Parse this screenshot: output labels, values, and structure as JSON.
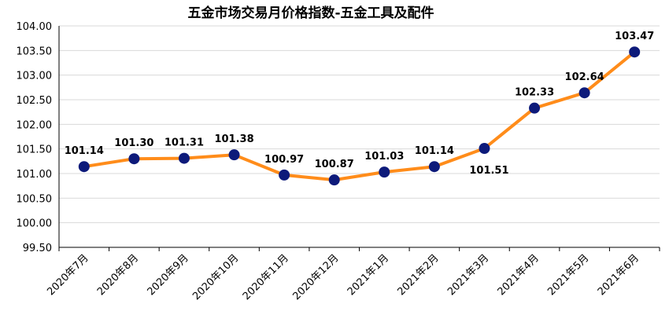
{
  "chart_data": {
    "type": "line",
    "title": "五金市场交易月价格指数-五金工具及配件",
    "xlabel": "",
    "ylabel": "",
    "categories": [
      "2020年7月",
      "2020年8月",
      "2020年9月",
      "2020年10月",
      "2020年11月",
      "2020年12月",
      "2021年1月",
      "2021年2月",
      "2021年3月",
      "2021年4月",
      "2021年5月",
      "2021年6月"
    ],
    "series": [
      {
        "values": [
          101.14,
          101.3,
          101.31,
          101.38,
          100.97,
          100.87,
          101.03,
          101.14,
          101.51,
          102.33,
          102.64,
          103.47
        ]
      }
    ],
    "data_labels": [
      "101.14",
      "101.30",
      "101.31",
      "101.38",
      "100.97",
      "100.87",
      "101.03",
      "101.14",
      "101.51",
      "102.33",
      "102.64",
      "103.47"
    ],
    "ylim": [
      99.5,
      104.0
    ],
    "yticks": [
      "104.00",
      "103.50",
      "103.00",
      "102.50",
      "102.00",
      "101.50",
      "101.00",
      "100.50",
      "100.00",
      "99.50"
    ],
    "grid": true,
    "legend": "none",
    "colors": {
      "line": "#FF8C1A",
      "marker": "#0D1A7A",
      "grid": "#D9D9D9",
      "axis": "#000000"
    }
  }
}
